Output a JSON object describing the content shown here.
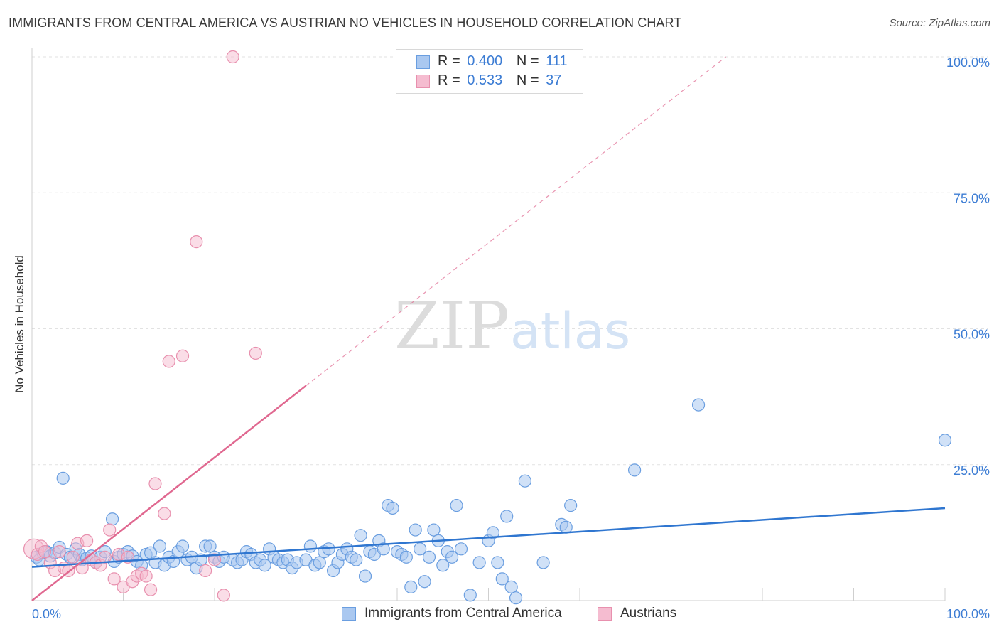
{
  "title": "IMMIGRANTS FROM CENTRAL AMERICA VS AUSTRIAN NO VEHICLES IN HOUSEHOLD CORRELATION CHART",
  "source": "Source: ZipAtlas.com",
  "watermark": {
    "zip": "ZIP",
    "atlas": "atlas"
  },
  "legend_top": [
    {
      "r_label": "R =",
      "r_value": "0.400",
      "n_label": "N =",
      "n_value": "111"
    },
    {
      "r_label": "R =",
      "r_value": "0.533",
      "n_label": "N =",
      "n_value": "37"
    }
  ],
  "legend_bottom": [
    {
      "label": "Immigrants from Central America"
    },
    {
      "label": "Austrians"
    }
  ],
  "chart_data": {
    "type": "scatter",
    "title": "IMMIGRANTS FROM CENTRAL AMERICA VS AUSTRIAN NO VEHICLES IN HOUSEHOLD CORRELATION CHART",
    "xlabel": "",
    "ylabel": "No Vehicles in Household",
    "xlim": [
      0,
      100
    ],
    "ylim": [
      0,
      100
    ],
    "x_tick_labels": [
      "0.0%",
      "100.0%"
    ],
    "y_tick_labels": [
      "25.0%",
      "50.0%",
      "75.0%",
      "100.0%"
    ],
    "y_ticks": [
      25,
      50,
      75,
      100
    ],
    "grid": true,
    "legend_position": "bottom",
    "colors": {
      "blue_fill": "#aac8f0",
      "blue_stroke": "#6a9ee0",
      "blue_line": "#2f76d0",
      "pink_fill": "#f5bcd0",
      "pink_stroke": "#e890ae",
      "pink_line": "#e06890",
      "tick_label": "#3d7dd4",
      "grid": "#e2e2e2"
    },
    "series": [
      {
        "name": "Immigrants from Central America",
        "R": 0.4,
        "N": 111,
        "trend": {
          "x": [
            0,
            100
          ],
          "y": [
            6.2,
            17.0
          ],
          "dashed_extension": false
        },
        "points": [
          [
            0.5,
            8.0
          ],
          [
            0.8,
            7.5
          ],
          [
            1.2,
            8.8
          ],
          [
            1.6,
            9.0
          ],
          [
            2.0,
            8.2
          ],
          [
            2.5,
            8.8
          ],
          [
            3.0,
            9.8
          ],
          [
            3.4,
            22.5
          ],
          [
            3.8,
            8.5
          ],
          [
            4.2,
            8.0
          ],
          [
            4.8,
            9.5
          ],
          [
            5.2,
            8.5
          ],
          [
            5.5,
            7.5
          ],
          [
            6.0,
            7.8
          ],
          [
            6.5,
            8.2
          ],
          [
            7.0,
            7.0
          ],
          [
            7.5,
            8.0
          ],
          [
            8.0,
            9.0
          ],
          [
            8.8,
            15.0
          ],
          [
            9.0,
            7.2
          ],
          [
            9.5,
            8.0
          ],
          [
            10.0,
            8.5
          ],
          [
            10.5,
            9.0
          ],
          [
            11.0,
            8.2
          ],
          [
            11.5,
            7.2
          ],
          [
            12.0,
            6.5
          ],
          [
            12.5,
            8.5
          ],
          [
            13.0,
            8.8
          ],
          [
            13.5,
            7.0
          ],
          [
            14.0,
            10.0
          ],
          [
            14.5,
            6.5
          ],
          [
            15.0,
            8.0
          ],
          [
            15.5,
            7.2
          ],
          [
            16.0,
            9.0
          ],
          [
            16.5,
            10.0
          ],
          [
            17.0,
            7.5
          ],
          [
            17.5,
            8.0
          ],
          [
            18.0,
            6.0
          ],
          [
            18.5,
            7.5
          ],
          [
            19.0,
            10.0
          ],
          [
            19.5,
            10.0
          ],
          [
            20.0,
            8.0
          ],
          [
            20.5,
            7.2
          ],
          [
            21.0,
            8.0
          ],
          [
            22.0,
            7.5
          ],
          [
            22.5,
            7.0
          ],
          [
            23.0,
            7.5
          ],
          [
            23.5,
            9.0
          ],
          [
            24.0,
            8.5
          ],
          [
            24.5,
            7.0
          ],
          [
            25.0,
            7.5
          ],
          [
            25.5,
            6.5
          ],
          [
            26.0,
            9.5
          ],
          [
            26.5,
            8.0
          ],
          [
            27.0,
            7.5
          ],
          [
            27.5,
            7.0
          ],
          [
            28.0,
            7.5
          ],
          [
            28.5,
            6.0
          ],
          [
            29.0,
            7.0
          ],
          [
            30.0,
            7.5
          ],
          [
            30.5,
            10.0
          ],
          [
            31.0,
            6.5
          ],
          [
            31.5,
            7.0
          ],
          [
            32.0,
            9.0
          ],
          [
            32.5,
            9.5
          ],
          [
            33.0,
            5.5
          ],
          [
            33.5,
            7.0
          ],
          [
            34.0,
            8.5
          ],
          [
            34.5,
            9.5
          ],
          [
            35.0,
            8.0
          ],
          [
            35.5,
            7.5
          ],
          [
            36.0,
            12.0
          ],
          [
            36.5,
            4.5
          ],
          [
            37.0,
            9.0
          ],
          [
            37.5,
            8.5
          ],
          [
            38.0,
            11.0
          ],
          [
            38.5,
            9.5
          ],
          [
            39.0,
            17.5
          ],
          [
            39.5,
            17.0
          ],
          [
            40.0,
            9.0
          ],
          [
            40.5,
            8.5
          ],
          [
            41.0,
            8.0
          ],
          [
            41.5,
            2.5
          ],
          [
            42.0,
            13.0
          ],
          [
            42.5,
            9.5
          ],
          [
            43.0,
            3.5
          ],
          [
            43.5,
            8.0
          ],
          [
            44.0,
            13.0
          ],
          [
            44.5,
            11.0
          ],
          [
            45.0,
            6.5
          ],
          [
            45.5,
            9.0
          ],
          [
            46.0,
            8.0
          ],
          [
            46.5,
            17.5
          ],
          [
            47.0,
            9.5
          ],
          [
            48.0,
            1.0
          ],
          [
            49.0,
            7.0
          ],
          [
            50.0,
            11.0
          ],
          [
            50.5,
            12.5
          ],
          [
            51.0,
            7.0
          ],
          [
            51.5,
            4.0
          ],
          [
            52.0,
            15.5
          ],
          [
            52.5,
            2.5
          ],
          [
            53.0,
            0.5
          ],
          [
            54.0,
            22.0
          ],
          [
            56.0,
            7.0
          ],
          [
            58.0,
            14.0
          ],
          [
            58.5,
            13.5
          ],
          [
            59.0,
            17.5
          ],
          [
            66.0,
            24.0
          ],
          [
            73.0,
            36.0
          ],
          [
            100.0,
            29.5
          ]
        ]
      },
      {
        "name": "Austrians",
        "R": 0.533,
        "N": 37,
        "trend": {
          "x": [
            0,
            30
          ],
          "y": [
            0,
            39.5
          ],
          "dashed_extension": true,
          "dashed_to": [
            76,
            100
          ]
        },
        "points": [
          [
            0.2,
            9.5
          ],
          [
            0.6,
            8.5
          ],
          [
            1.0,
            10.0
          ],
          [
            1.4,
            9.0
          ],
          [
            2.0,
            7.0
          ],
          [
            2.5,
            5.5
          ],
          [
            3.0,
            9.0
          ],
          [
            3.5,
            6.0
          ],
          [
            4.0,
            5.5
          ],
          [
            4.5,
            8.0
          ],
          [
            5.0,
            10.5
          ],
          [
            5.5,
            6.0
          ],
          [
            6.0,
            11.0
          ],
          [
            6.5,
            7.5
          ],
          [
            7.0,
            7.0
          ],
          [
            7.5,
            6.5
          ],
          [
            8.0,
            8.0
          ],
          [
            8.5,
            13.0
          ],
          [
            9.0,
            4.0
          ],
          [
            9.5,
            8.5
          ],
          [
            10.0,
            2.5
          ],
          [
            10.5,
            8.0
          ],
          [
            11.0,
            3.5
          ],
          [
            11.5,
            4.5
          ],
          [
            12.0,
            5.0
          ],
          [
            12.5,
            4.5
          ],
          [
            13.0,
            2.0
          ],
          [
            13.5,
            21.5
          ],
          [
            14.5,
            16.0
          ],
          [
            15.0,
            44.0
          ],
          [
            16.5,
            45.0
          ],
          [
            18.0,
            66.0
          ],
          [
            19.0,
            5.5
          ],
          [
            20.0,
            7.5
          ],
          [
            21.0,
            1.0
          ],
          [
            22.0,
            100.0
          ],
          [
            24.5,
            45.5
          ]
        ]
      }
    ]
  }
}
